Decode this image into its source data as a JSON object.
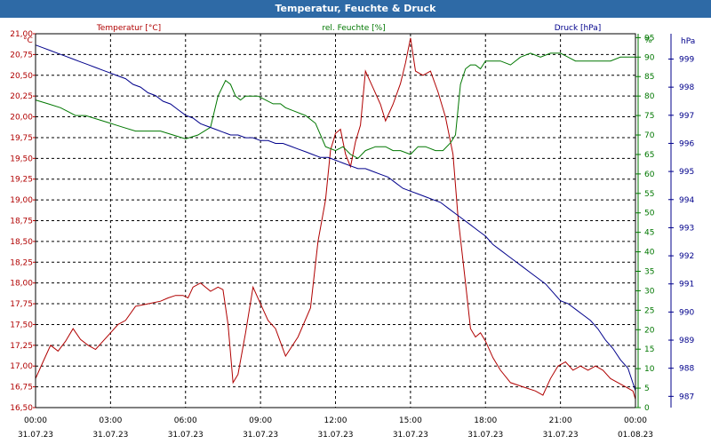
{
  "window": {
    "title": "Temperatur, Feuchte & Druck"
  },
  "colors": {
    "temperature": "#b00000",
    "humidity": "#007700",
    "pressure": "#00008b",
    "titlebar": "#2e6aa6"
  },
  "chart_data": {
    "type": "line",
    "grid": true,
    "x_ticks": [
      {
        "time": "00:00",
        "date": "31.07.23"
      },
      {
        "time": "03:00",
        "date": "31.07.23"
      },
      {
        "time": "06:00",
        "date": "31.07.23"
      },
      {
        "time": "09:00",
        "date": "31.07.23"
      },
      {
        "time": "12:00",
        "date": "31.07.23"
      },
      {
        "time": "15:00",
        "date": "31.07.23"
      },
      {
        "time": "18:00",
        "date": "31.07.23"
      },
      {
        "time": "21:00",
        "date": "31.07.23"
      },
      {
        "time": "00:00",
        "date": "01.08.23"
      }
    ],
    "axes": {
      "temperature": {
        "label": "Temperatur [°C]",
        "unit": "°C",
        "min": 16.5,
        "max": 21.0,
        "ticks": [
          "16,50",
          "16,75",
          "17,00",
          "17,25",
          "17,50",
          "17,75",
          "18,00",
          "18,25",
          "18,50",
          "18,75",
          "19,00",
          "19,25",
          "19,50",
          "19,75",
          "20,00",
          "20,25",
          "20,50",
          "20,75",
          "21,00"
        ]
      },
      "humidity": {
        "label": "rel. Feuchte [%]",
        "unit": "%",
        "min": 0,
        "max": 96,
        "ticks": [
          "0",
          "5",
          "10",
          "15",
          "20",
          "25",
          "30",
          "35",
          "40",
          "45",
          "50",
          "55",
          "60",
          "65",
          "70",
          "75",
          "80",
          "85",
          "90",
          "95"
        ],
        "top_label": "%"
      },
      "pressure": {
        "label": "Druck [hPa]",
        "unit": "hPa",
        "min": 986.6,
        "max": 999.9,
        "ticks": [
          "987",
          "988",
          "989",
          "990",
          "991",
          "992",
          "993",
          "994",
          "995",
          "996",
          "997",
          "998",
          "999"
        ]
      }
    },
    "series": [
      {
        "name": "Temperatur [°C]",
        "axis": "temperature",
        "x": [
          0,
          0.3,
          0.6,
          0.9,
          1.2,
          1.5,
          1.8,
          2.1,
          2.4,
          2.7,
          3.0,
          3.3,
          3.6,
          4.0,
          4.5,
          5.0,
          5.3,
          5.6,
          5.9,
          6.1,
          6.3,
          6.6,
          7.0,
          7.3,
          7.5,
          7.7,
          7.9,
          8.1,
          8.4,
          8.7,
          9.0,
          9.3,
          9.6,
          10.0,
          10.5,
          11.0,
          11.3,
          11.6,
          11.8,
          12.0,
          12.2,
          12.4,
          12.6,
          12.8,
          13.0,
          13.2,
          13.5,
          13.8,
          14.0,
          14.3,
          14.6,
          14.8,
          15.0,
          15.2,
          15.5,
          15.8,
          16.1,
          16.4,
          16.7,
          16.9,
          17.2,
          17.4,
          17.6,
          17.8,
          18.0,
          18.3,
          18.6,
          19.0,
          19.5,
          20.0,
          20.3,
          20.6,
          20.9,
          21.2,
          21.5,
          21.8,
          22.1,
          22.4,
          22.7,
          23.0,
          23.3,
          23.6,
          23.9,
          24.0
        ],
        "y": [
          16.85,
          17.05,
          17.25,
          17.18,
          17.3,
          17.45,
          17.32,
          17.25,
          17.2,
          17.3,
          17.4,
          17.5,
          17.55,
          17.72,
          17.75,
          17.78,
          17.82,
          17.85,
          17.85,
          17.82,
          17.95,
          18.0,
          17.9,
          17.95,
          17.92,
          17.5,
          16.8,
          16.9,
          17.4,
          17.95,
          17.75,
          17.55,
          17.45,
          17.12,
          17.35,
          17.7,
          18.5,
          19.0,
          19.6,
          19.8,
          19.85,
          19.55,
          19.4,
          19.7,
          19.9,
          20.55,
          20.35,
          20.15,
          19.95,
          20.15,
          20.4,
          20.65,
          20.95,
          20.55,
          20.5,
          20.55,
          20.3,
          20.0,
          19.55,
          18.8,
          18.0,
          17.45,
          17.35,
          17.4,
          17.3,
          17.1,
          16.95,
          16.8,
          16.75,
          16.7,
          16.65,
          16.85,
          17.0,
          17.05,
          16.95,
          17.0,
          16.95,
          17.0,
          16.95,
          16.85,
          16.8,
          16.75,
          16.7,
          16.6
        ]
      },
      {
        "name": "rel. Feuchte [%]",
        "axis": "humidity",
        "x": [
          0,
          0.5,
          1.0,
          1.3,
          1.6,
          2.0,
          2.5,
          3.0,
          3.5,
          4.0,
          4.5,
          5.0,
          5.5,
          6.0,
          6.5,
          7.0,
          7.3,
          7.6,
          7.8,
          8.0,
          8.2,
          8.4,
          8.6,
          8.9,
          9.2,
          9.5,
          9.8,
          10.0,
          10.4,
          10.8,
          11.2,
          11.6,
          12.0,
          12.3,
          12.6,
          12.9,
          13.2,
          13.6,
          14.0,
          14.3,
          14.6,
          15.0,
          15.3,
          15.6,
          16.0,
          16.3,
          16.6,
          16.8,
          17.0,
          17.2,
          17.4,
          17.6,
          17.8,
          18.0,
          18.3,
          18.6,
          19.0,
          19.4,
          19.8,
          20.2,
          20.6,
          21.0,
          21.3,
          21.6,
          21.9,
          22.2,
          22.6,
          23.0,
          23.4,
          23.7,
          24.0
        ],
        "y": [
          79,
          78,
          77,
          76,
          75,
          75,
          74,
          73,
          72,
          71,
          71,
          71,
          70,
          69,
          70,
          72,
          80,
          84,
          83,
          80,
          79,
          80,
          80,
          80,
          79,
          78,
          78,
          77,
          76,
          75,
          73,
          67,
          66,
          67,
          65,
          64,
          66,
          67,
          67,
          66,
          66,
          65,
          67,
          67,
          66,
          66,
          68,
          70,
          83,
          87,
          88,
          88,
          87,
          89,
          89,
          89,
          88,
          90,
          91,
          90,
          91,
          91,
          90,
          89,
          89,
          89,
          89,
          89,
          90,
          90,
          90
        ]
      },
      {
        "name": "Druck [hPa]",
        "axis": "pressure",
        "x": [
          0,
          0.3,
          0.6,
          0.9,
          1.2,
          1.5,
          1.8,
          2.1,
          2.4,
          2.7,
          3.0,
          3.3,
          3.6,
          3.9,
          4.2,
          4.5,
          4.8,
          5.1,
          5.4,
          5.7,
          6.0,
          6.3,
          6.6,
          6.9,
          7.2,
          7.5,
          7.8,
          8.1,
          8.4,
          8.7,
          9.0,
          9.3,
          9.6,
          9.9,
          10.2,
          10.5,
          10.8,
          11.1,
          11.4,
          11.7,
          12.0,
          12.3,
          12.6,
          12.9,
          13.2,
          13.5,
          13.8,
          14.1,
          14.4,
          14.7,
          15.0,
          15.3,
          15.6,
          15.9,
          16.2,
          16.5,
          16.8,
          17.1,
          17.4,
          17.7,
          18.0,
          18.3,
          18.6,
          18.9,
          19.2,
          19.5,
          19.8,
          20.1,
          20.4,
          20.7,
          21.0,
          21.3,
          21.6,
          21.9,
          22.2,
          22.5,
          22.8,
          23.1,
          23.4,
          23.7,
          24.0
        ],
        "y": [
          999.5,
          999.4,
          999.3,
          999.2,
          999.1,
          999.0,
          998.9,
          998.8,
          998.7,
          998.6,
          998.5,
          998.4,
          998.3,
          998.1,
          998.0,
          997.8,
          997.7,
          997.5,
          997.4,
          997.2,
          997.0,
          996.9,
          996.7,
          996.6,
          996.5,
          996.4,
          996.3,
          996.3,
          996.2,
          996.2,
          996.1,
          996.1,
          996.0,
          996.0,
          995.9,
          995.8,
          995.7,
          995.6,
          995.5,
          995.5,
          995.4,
          995.3,
          995.2,
          995.1,
          995.1,
          995.0,
          994.9,
          994.8,
          994.6,
          994.4,
          994.3,
          994.2,
          994.1,
          994.0,
          993.9,
          993.7,
          993.5,
          993.3,
          993.1,
          992.9,
          992.7,
          992.4,
          992.2,
          992.0,
          991.8,
          991.6,
          991.4,
          991.2,
          991.0,
          990.7,
          990.4,
          990.3,
          990.1,
          989.9,
          989.7,
          989.4,
          989.0,
          988.7,
          988.3,
          988.0,
          987.2
        ]
      }
    ]
  }
}
